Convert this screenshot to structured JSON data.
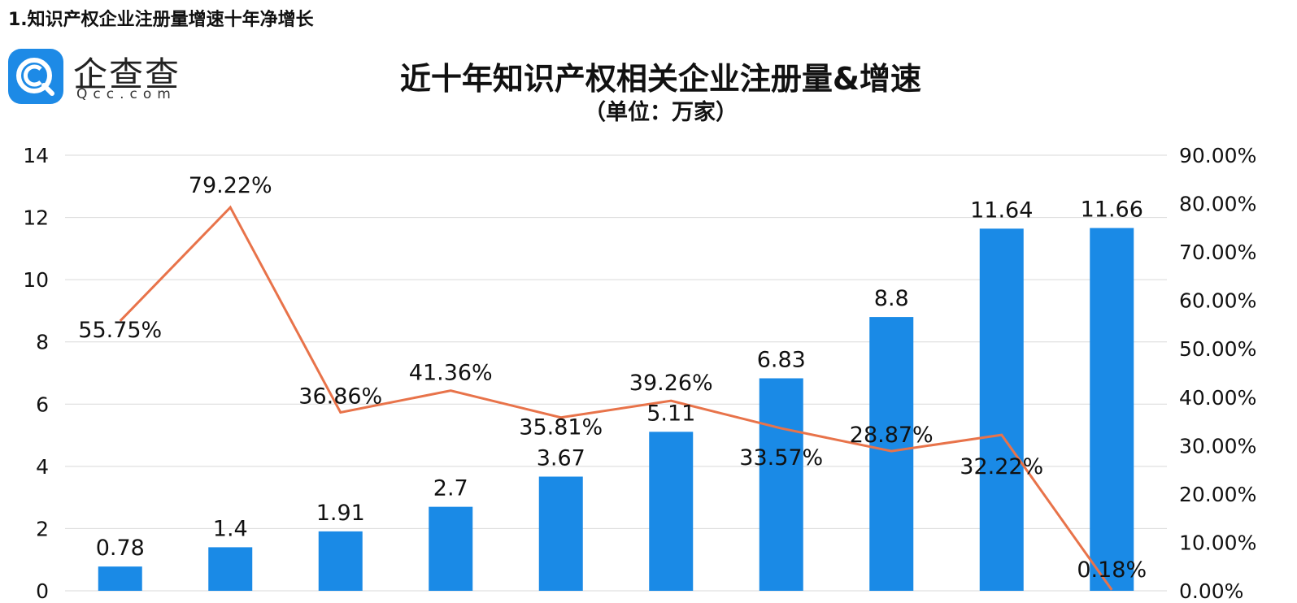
{
  "page": {
    "heading": "1.知识产权企业注册量增速十年净增长"
  },
  "logo": {
    "name": "企查查",
    "sub": "Qcc.com",
    "color": "#1d8ae6"
  },
  "chart_data": {
    "type": "bar",
    "title": "近十年知识产权相关企业注册量&增速",
    "subtitle": "（单位：万家）",
    "categories": [
      "",
      "",
      "",
      "",
      "",
      "",
      "",
      "",
      "",
      ""
    ],
    "series": [
      {
        "type": "bar",
        "color": "#1a8ae6",
        "axis": "left",
        "values": [
          0.78,
          1.4,
          1.91,
          2.7,
          3.67,
          5.11,
          6.83,
          8.8,
          11.64,
          11.66
        ],
        "labels": [
          "0.78",
          "1.4",
          "1.91",
          "2.7",
          "3.67",
          "5.11",
          "6.83",
          "8.8",
          "11.64",
          "11.66"
        ]
      },
      {
        "type": "line",
        "color": "#e8734a",
        "axis": "right",
        "values": [
          55.75,
          79.22,
          36.86,
          41.36,
          35.81,
          39.26,
          33.57,
          28.87,
          32.22,
          0.18
        ],
        "labels": [
          "55.75%",
          "79.22%",
          "36.86%",
          "41.36%",
          "35.81%",
          "39.26%",
          "33.57%",
          "28.87%",
          "32.22%",
          "0.18%"
        ]
      }
    ],
    "y_left": {
      "range": [
        0,
        14
      ],
      "ticks": [
        "0",
        "2",
        "4",
        "6",
        "8",
        "10",
        "12",
        "14"
      ]
    },
    "y_right": {
      "range": [
        0,
        90
      ],
      "ticks": [
        "0.00%",
        "10.00%",
        "20.00%",
        "30.00%",
        "40.00%",
        "50.00%",
        "60.00%",
        "70.00%",
        "80.00%",
        "90.00%"
      ]
    },
    "grid": true,
    "legend": "none"
  }
}
